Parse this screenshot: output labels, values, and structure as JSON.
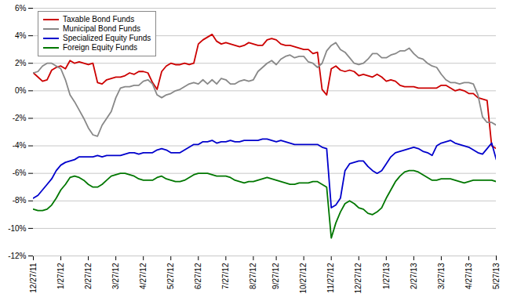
{
  "chart_data": {
    "type": "line",
    "categories": [
      "12/27/11",
      null,
      null,
      null,
      null,
      null,
      "1/27/12",
      null,
      null,
      null,
      null,
      null,
      "2/27/12",
      null,
      null,
      null,
      null,
      null,
      "3/27/12",
      null,
      null,
      null,
      null,
      null,
      "4/27/12",
      null,
      null,
      null,
      null,
      null,
      "5/27/12",
      null,
      null,
      null,
      null,
      null,
      "6/27/12",
      null,
      null,
      null,
      null,
      null,
      "7/27/12",
      null,
      null,
      null,
      null,
      null,
      "8/27/12",
      null,
      null,
      null,
      null,
      "9/27/12",
      null,
      null,
      null,
      null,
      null,
      "10/27/12",
      null,
      null,
      null,
      null,
      null,
      "11/27/12",
      null,
      null,
      null,
      null,
      null,
      "12/27/12",
      null,
      null,
      null,
      null,
      null,
      "1/27/13",
      null,
      null,
      null,
      null,
      null,
      "2/27/13",
      null,
      null,
      null,
      null,
      null,
      "3/27/13",
      null,
      null,
      null,
      null,
      null,
      "4/27/13",
      null,
      null,
      null,
      null,
      null,
      "5/27/13"
    ],
    "ylim": [
      -12,
      6
    ],
    "yticks": [
      {
        "value": -12,
        "label": "-12%"
      },
      {
        "value": -10,
        "label": "-10%"
      },
      {
        "value": -8,
        "label": "-8%"
      },
      {
        "value": -6,
        "label": "-6%"
      },
      {
        "value": -4,
        "label": "-4%"
      },
      {
        "value": -2,
        "label": "-2%"
      },
      {
        "value": 0,
        "label": "0%"
      },
      {
        "value": 2,
        "label": "2%"
      },
      {
        "value": 4,
        "label": "4%"
      },
      {
        "value": 6,
        "label": "6%"
      }
    ],
    "grid": true,
    "legend": "upper left",
    "series": [
      {
        "name": "Taxable Bond Funds",
        "color": "#cc0000",
        "values": [
          1.3,
          1.0,
          0.7,
          0.8,
          1.5,
          1.7,
          1.8,
          1.6,
          2.2,
          2.0,
          2.1,
          2.0,
          1.9,
          2.0,
          0.6,
          0.5,
          0.8,
          0.9,
          1.0,
          1.0,
          1.1,
          1.3,
          1.2,
          1.4,
          1.4,
          1.3,
          0.6,
          0.1,
          1.4,
          1.8,
          2.0,
          1.9,
          1.9,
          2.0,
          1.9,
          2.0,
          3.4,
          3.7,
          3.9,
          4.1,
          3.6,
          3.4,
          3.5,
          3.4,
          3.3,
          3.2,
          3.3,
          3.5,
          3.4,
          3.3,
          3.3,
          3.7,
          3.8,
          3.7,
          3.4,
          3.3,
          3.3,
          3.2,
          3.1,
          3.0,
          3.0,
          2.7,
          2.8,
          0.1,
          -0.3,
          1.6,
          1.8,
          1.5,
          1.4,
          1.5,
          1.4,
          1.1,
          1.2,
          1.1,
          1.0,
          1.2,
          1.0,
          0.7,
          0.8,
          0.7,
          0.4,
          0.3,
          0.3,
          0.3,
          0.2,
          0.2,
          0.2,
          0.2,
          0.2,
          0.4,
          0.4,
          0.2,
          0.0,
          0.1,
          0.0,
          -0.2,
          -0.2,
          -0.5,
          -0.6,
          -0.7,
          -4.0,
          -4.2
        ]
      },
      {
        "name": "Municipal Bond Funds",
        "color": "#888888",
        "values": [
          1.3,
          1.4,
          1.8,
          2.0,
          2.0,
          1.8,
          1.6,
          0.8,
          -0.3,
          -0.8,
          -1.4,
          -2.0,
          -2.7,
          -3.2,
          -3.3,
          -2.5,
          -2.0,
          -1.5,
          -0.5,
          0.2,
          0.3,
          0.3,
          0.4,
          0.4,
          0.7,
          0.8,
          0.5,
          -0.3,
          -0.5,
          -0.3,
          -0.2,
          0.0,
          0.1,
          0.3,
          0.5,
          0.6,
          0.5,
          0.8,
          0.5,
          0.8,
          0.5,
          0.9,
          0.8,
          0.5,
          0.5,
          0.7,
          0.8,
          0.7,
          0.8,
          1.4,
          1.7,
          2.0,
          2.2,
          1.9,
          2.3,
          2.5,
          2.6,
          2.4,
          2.5,
          2.5,
          2.1,
          2.0,
          1.7,
          2.0,
          2.9,
          3.3,
          3.5,
          3.0,
          2.8,
          2.4,
          2.0,
          1.9,
          2.0,
          2.3,
          2.7,
          2.7,
          2.4,
          2.4,
          2.6,
          2.7,
          2.9,
          2.9,
          3.1,
          2.7,
          2.4,
          2.3,
          2.0,
          1.8,
          1.7,
          1.2,
          0.8,
          0.6,
          0.6,
          0.5,
          0.6,
          0.6,
          0.5,
          -0.3,
          -1.9,
          -2.3,
          -2.3,
          -2.5
        ]
      },
      {
        "name": "Specialized Equity Funds",
        "color": "#0000cc",
        "values": [
          -7.8,
          -7.6,
          -7.2,
          -6.8,
          -6.4,
          -5.8,
          -5.4,
          -5.2,
          -5.1,
          -5.0,
          -4.8,
          -4.8,
          -4.8,
          -4.8,
          -4.7,
          -4.8,
          -4.7,
          -4.7,
          -4.7,
          -4.7,
          -4.6,
          -4.5,
          -4.5,
          -4.6,
          -4.5,
          -4.5,
          -4.5,
          -4.3,
          -4.2,
          -4.3,
          -4.5,
          -4.5,
          -4.5,
          -4.3,
          -4.1,
          -3.9,
          -3.9,
          -3.7,
          -3.7,
          -3.6,
          -3.8,
          -3.7,
          -3.7,
          -3.6,
          -3.7,
          -3.7,
          -3.6,
          -3.6,
          -3.6,
          -3.6,
          -3.5,
          -3.5,
          -3.6,
          -3.7,
          -3.6,
          -3.7,
          -3.8,
          -3.9,
          -3.9,
          -3.9,
          -3.9,
          -3.9,
          -3.9,
          -4.1,
          -4.2,
          -8.5,
          -8.3,
          -7.8,
          -5.8,
          -5.3,
          -5.2,
          -5.1,
          -5.1,
          -5.5,
          -5.8,
          -6.0,
          -5.8,
          -5.3,
          -4.8,
          -4.5,
          -4.4,
          -4.3,
          -4.2,
          -4.1,
          -4.2,
          -4.4,
          -4.5,
          -4.7,
          -4.0,
          -3.8,
          -3.7,
          -3.6,
          -3.8,
          -3.9,
          -4.0,
          -4.1,
          -4.3,
          -4.5,
          -4.6,
          -4.2,
          -3.8,
          -5.0
        ]
      },
      {
        "name": "Foreign Equity Funds",
        "color": "#007700",
        "values": [
          -8.6,
          -8.7,
          -8.7,
          -8.6,
          -8.3,
          -7.8,
          -7.2,
          -6.8,
          -6.3,
          -6.2,
          -6.3,
          -6.5,
          -6.8,
          -7.0,
          -7.0,
          -6.8,
          -6.5,
          -6.2,
          -6.1,
          -6.0,
          -6.0,
          -6.1,
          -6.2,
          -6.4,
          -6.5,
          -6.5,
          -6.5,
          -6.3,
          -6.2,
          -6.4,
          -6.5,
          -6.6,
          -6.6,
          -6.5,
          -6.3,
          -6.1,
          -6.0,
          -6.0,
          -6.0,
          -6.1,
          -6.2,
          -6.2,
          -6.2,
          -6.3,
          -6.5,
          -6.6,
          -6.7,
          -6.6,
          -6.6,
          -6.5,
          -6.4,
          -6.3,
          -6.4,
          -6.5,
          -6.6,
          -6.7,
          -6.8,
          -6.8,
          -6.7,
          -6.7,
          -6.7,
          -6.6,
          -6.6,
          -6.8,
          -7.0,
          -10.7,
          -9.6,
          -8.8,
          -8.2,
          -8.0,
          -8.2,
          -8.5,
          -8.6,
          -8.9,
          -9.0,
          -8.8,
          -8.5,
          -7.8,
          -7.2,
          -6.6,
          -6.2,
          -5.9,
          -5.8,
          -5.8,
          -5.9,
          -6.1,
          -6.3,
          -6.5,
          -6.5,
          -6.4,
          -6.4,
          -6.4,
          -6.5,
          -6.6,
          -6.7,
          -6.6,
          -6.5,
          -6.5,
          -6.5,
          -6.5,
          -6.5,
          -6.6
        ]
      }
    ]
  }
}
